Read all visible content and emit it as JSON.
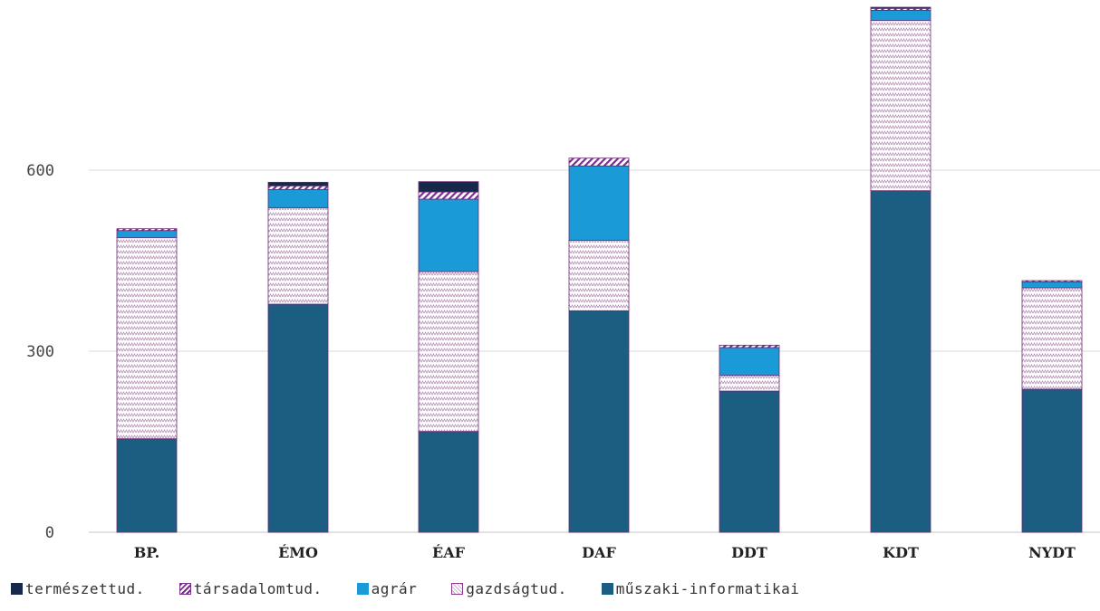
{
  "chart_data": {
    "type": "bar",
    "stacked": true,
    "categories": [
      "BP.",
      "ÉMO",
      "ÉAF",
      "DAF",
      "DDT",
      "KDT",
      "NYDT"
    ],
    "y_ticks": [
      "0",
      "300",
      "600"
    ],
    "ylim": [
      0,
      860
    ],
    "grid": true,
    "legend_position": "bottom",
    "series": [
      {
        "name": "műszaki-informatikai",
        "color": "#1b5e82",
        "pattern": "solid",
        "values": [
          155,
          378,
          167,
          367,
          234,
          566,
          237
        ]
      },
      {
        "name": "gazdságtud.",
        "color": "#8a3a8e",
        "pattern": "zigzag",
        "values": [
          333,
          160,
          265,
          117,
          26,
          282,
          168
        ]
      },
      {
        "name": "agrár",
        "color": "#1a9ad6",
        "pattern": "solid",
        "values": [
          12,
          30,
          120,
          123,
          46,
          17,
          10
        ]
      },
      {
        "name": "társadalomtud.",
        "color": "#7b2d8e",
        "pattern": "diagonal",
        "values": [
          3,
          6,
          12,
          13,
          4,
          3,
          2
        ]
      },
      {
        "name": "természettud.",
        "color": "#16294a",
        "pattern": "solid",
        "values": [
          0,
          6,
          17,
          0,
          0,
          2,
          0
        ]
      }
    ],
    "legend_order": [
      "természettud.",
      "társadalomtud.",
      "agrár",
      "gazdságtud.",
      "műszaki-informatikai"
    ]
  }
}
